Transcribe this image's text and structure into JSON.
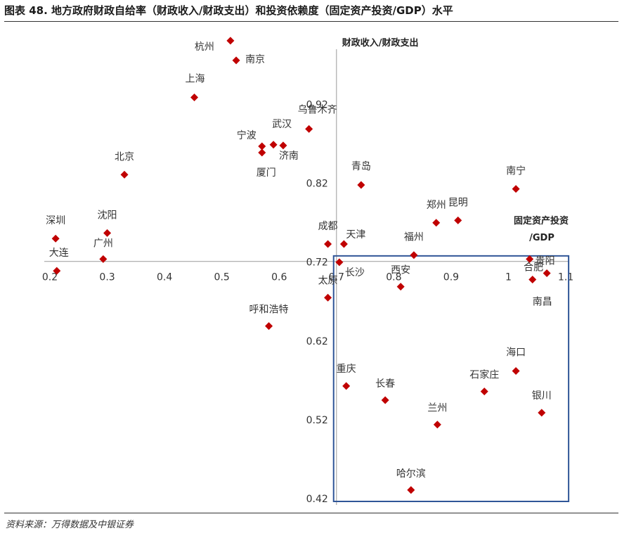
{
  "header": {
    "title": "图表 48. 地方政府财政自给率（财政收入/财政支出）和投资依赖度（固定资产投资/GDP）水平"
  },
  "footer": {
    "source": "资料来源：万得数据及中银证券"
  },
  "chart_data": {
    "type": "scatter",
    "title": "图表 48. 地方政府财政自给率（财政收入/财政支出）和投资依赖度（固定资产投资/GDP）水平",
    "xlabel": [
      "固定资产投资",
      "/GDP"
    ],
    "ylabel": "财政收入/财政支出",
    "xlim": [
      0.2,
      1.1
    ],
    "ylim": [
      0.42,
      1.02
    ],
    "x_axis_crosses_y_at": 0.72,
    "y_axis_crosses_x_at": 0.7,
    "x_ticks": [
      "0.2",
      "0.3",
      "0.4",
      "0.5",
      "0.6",
      "0.7",
      "0.8",
      "0.9",
      "1",
      "1.1"
    ],
    "y_ticks": [
      "0.42",
      "0.52",
      "0.62",
      "0.72",
      "0.82",
      "0.92"
    ],
    "marker_color": "#C00000",
    "highlight_box_color": "#2F5597",
    "highlight_box": {
      "x": [
        0.695,
        1.105
      ],
      "y": [
        0.42,
        0.727
      ]
    },
    "grid": false,
    "points": [
      {
        "name": "杭州",
        "x": 0.515,
        "y": 1.0
      },
      {
        "name": "南京",
        "x": 0.525,
        "y": 0.975
      },
      {
        "name": "上海",
        "x": 0.452,
        "y": 0.928
      },
      {
        "name": "乌鲁木齐",
        "x": 0.652,
        "y": 0.888
      },
      {
        "name": "武汉",
        "x": 0.59,
        "y": 0.868
      },
      {
        "name": "宁波",
        "x": 0.57,
        "y": 0.866
      },
      {
        "name": "济南",
        "x": 0.607,
        "y": 0.867
      },
      {
        "name": "厦门",
        "x": 0.57,
        "y": 0.858
      },
      {
        "name": "北京",
        "x": 0.33,
        "y": 0.83
      },
      {
        "name": "青岛",
        "x": 0.743,
        "y": 0.817
      },
      {
        "name": "南宁",
        "x": 1.013,
        "y": 0.812
      },
      {
        "name": "郑州",
        "x": 0.874,
        "y": 0.769
      },
      {
        "name": "昆明",
        "x": 0.912,
        "y": 0.772
      },
      {
        "name": "沈阳",
        "x": 0.3,
        "y": 0.756
      },
      {
        "name": "深圳",
        "x": 0.21,
        "y": 0.749
      },
      {
        "name": "成都",
        "x": 0.685,
        "y": 0.742
      },
      {
        "name": "天津",
        "x": 0.713,
        "y": 0.742
      },
      {
        "name": "福州",
        "x": 0.835,
        "y": 0.728
      },
      {
        "name": "广州",
        "x": 0.293,
        "y": 0.723
      },
      {
        "name": "大连",
        "x": 0.212,
        "y": 0.708
      },
      {
        "name": "长沙",
        "x": 0.705,
        "y": 0.719
      },
      {
        "name": "贵阳",
        "x": 1.037,
        "y": 0.723
      },
      {
        "name": "合肥",
        "x": 1.067,
        "y": 0.705
      },
      {
        "name": "南昌",
        "x": 1.042,
        "y": 0.697
      },
      {
        "name": "西安",
        "x": 0.812,
        "y": 0.688
      },
      {
        "name": "太原",
        "x": 0.685,
        "y": 0.674
      },
      {
        "name": "呼和浩特",
        "x": 0.582,
        "y": 0.638
      },
      {
        "name": "海口",
        "x": 1.013,
        "y": 0.581
      },
      {
        "name": "石家庄",
        "x": 0.958,
        "y": 0.555
      },
      {
        "name": "重庆",
        "x": 0.717,
        "y": 0.562
      },
      {
        "name": "长春",
        "x": 0.785,
        "y": 0.544
      },
      {
        "name": "银川",
        "x": 1.058,
        "y": 0.528
      },
      {
        "name": "兰州",
        "x": 0.876,
        "y": 0.513
      },
      {
        "name": "哈尔滨",
        "x": 0.83,
        "y": 0.43
      }
    ]
  }
}
